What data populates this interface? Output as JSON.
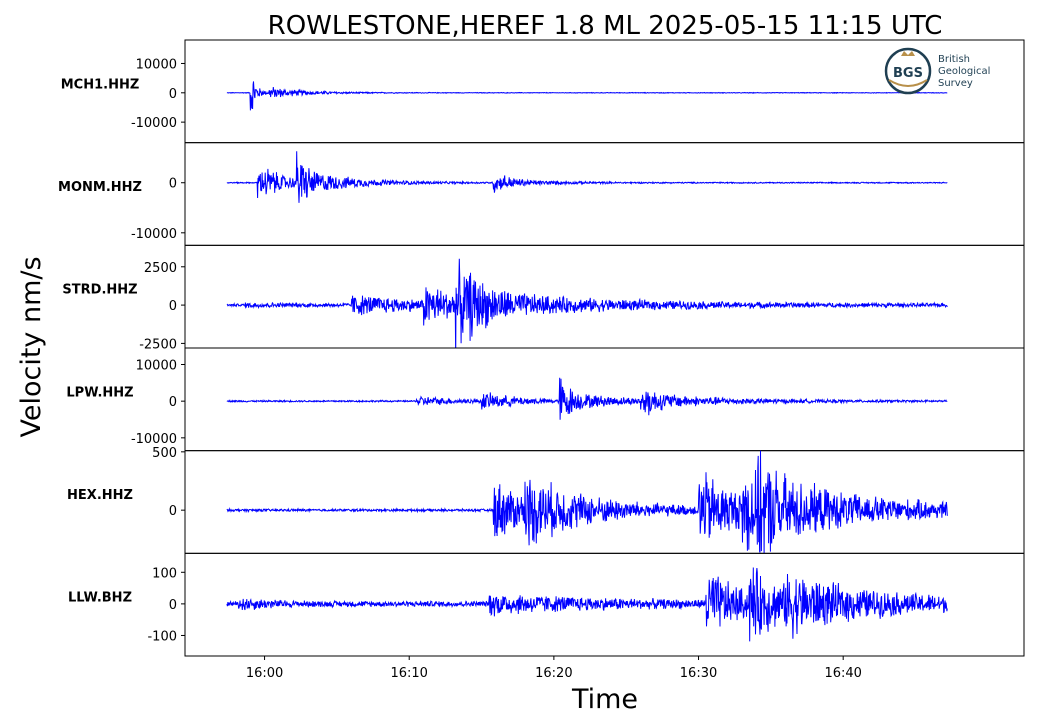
{
  "chart_data": {
    "type": "line",
    "title": "ROWLESTONE,HEREF 1.8 ML   2025-05-15 11:15 UTC",
    "ylabel": "Velocity nm/s",
    "xlabel": "Time",
    "x_unit": "minutes",
    "x_ticks": [
      {
        "value": 960,
        "label": "16:00"
      },
      {
        "value": 970,
        "label": "16:10"
      },
      {
        "value": 980,
        "label": "16:20"
      },
      {
        "value": 990,
        "label": "16:30"
      },
      {
        "value": 1000,
        "label": "16:40"
      }
    ],
    "xlim": [
      "15:54.5",
      "16:52.5"
    ],
    "trace_start": "15:57.4",
    "trace_end": "16:47.2",
    "line_color": "#0000ff",
    "grid": false,
    "logo": {
      "org": "BGS",
      "lines": [
        "British",
        "Geological",
        "Survey"
      ]
    },
    "series": [
      {
        "name": "MCH1.HHZ",
        "ylim": [
          -17000,
          18000
        ],
        "y_ticks": [
          {
            "value": 10000,
            "label": "10000"
          },
          {
            "value": 0,
            "label": "0"
          },
          {
            "value": -10000,
            "label": "-10000"
          }
        ],
        "noise": 120,
        "bursts": [
          {
            "t": 959.0,
            "amp": 13000,
            "decay": 0.15
          },
          {
            "t": 959.1,
            "amp": 5000,
            "decay": 0.5
          },
          {
            "t": 960.3,
            "amp": 2200,
            "decay": 2.5
          }
        ]
      },
      {
        "name": "MONM.HHZ",
        "ylim": [
          -12500,
          8000
        ],
        "y_ticks": [
          {
            "value": 0,
            "label": "0"
          },
          {
            "value": -10000,
            "label": "-10000"
          }
        ],
        "noise": 130,
        "bursts": [
          {
            "t": 959.5,
            "amp": 5500,
            "decay": 0.4
          },
          {
            "t": 960.0,
            "amp": 3000,
            "decay": 2.0
          },
          {
            "t": 962.2,
            "amp": 7500,
            "decay": 0.35
          },
          {
            "t": 962.5,
            "amp": 2500,
            "decay": 3.5
          },
          {
            "t": 975.8,
            "amp": 3200,
            "decay": 0.6
          },
          {
            "t": 976.5,
            "amp": 900,
            "decay": 3.0
          }
        ]
      },
      {
        "name": "STRD.HHZ",
        "ylim": [
          -2800,
          3900
        ],
        "y_ticks": [
          {
            "value": 2500,
            "label": "2500"
          },
          {
            "value": 0,
            "label": "0"
          },
          {
            "value": -2500,
            "label": "-2500"
          }
        ],
        "noise": 90,
        "bursts": [
          {
            "t": 958.5,
            "amp": 120,
            "decay": 8
          },
          {
            "t": 966.0,
            "amp": 700,
            "decay": 6
          },
          {
            "t": 971.0,
            "amp": 1300,
            "decay": 3
          },
          {
            "t": 973.2,
            "amp": 2700,
            "decay": 1.2
          },
          {
            "t": 974.0,
            "amp": 700,
            "decay": 12
          }
        ]
      },
      {
        "name": "LPW.HHZ",
        "ylim": [
          -13500,
          14500
        ],
        "y_ticks": [
          {
            "value": 10000,
            "label": "10000"
          },
          {
            "value": 0,
            "label": "0"
          },
          {
            "value": -10000,
            "label": "-10000"
          }
        ],
        "noise": 250,
        "bursts": [
          {
            "t": 970.5,
            "amp": 1500,
            "decay": 3
          },
          {
            "t": 975.0,
            "amp": 2300,
            "decay": 3
          },
          {
            "t": 980.4,
            "amp": 9500,
            "decay": 0.4
          },
          {
            "t": 980.8,
            "amp": 2500,
            "decay": 4
          },
          {
            "t": 986.0,
            "amp": 5000,
            "decay": 0.6
          },
          {
            "t": 986.5,
            "amp": 1800,
            "decay": 6
          }
        ]
      },
      {
        "name": "HEX.HHZ",
        "ylim": [
          -370,
          510
        ],
        "y_ticks": [
          {
            "value": 500,
            "label": "500"
          },
          {
            "value": 0,
            "label": "0"
          }
        ],
        "noise": 12,
        "bursts": [
          {
            "t": 975.8,
            "amp": 300,
            "decay": 3
          },
          {
            "t": 978.0,
            "amp": 220,
            "decay": 6
          },
          {
            "t": 990.0,
            "amp": 380,
            "decay": 3
          },
          {
            "t": 993.0,
            "amp": 350,
            "decay": 2.5
          },
          {
            "t": 994.0,
            "amp": 200,
            "decay": 12
          }
        ]
      },
      {
        "name": "LLW.BHZ",
        "ylim": [
          -165,
          160
        ],
        "y_ticks": [
          {
            "value": 100,
            "label": "100"
          },
          {
            "value": 0,
            "label": "0"
          },
          {
            "value": -100,
            "label": "-100"
          }
        ],
        "noise": 10,
        "bursts": [
          {
            "t": 958.2,
            "amp": 20,
            "decay": 2
          },
          {
            "t": 975.5,
            "amp": 35,
            "decay": 8
          },
          {
            "t": 990.5,
            "amp": 120,
            "decay": 2.5
          },
          {
            "t": 993.5,
            "amp": 100,
            "decay": 3
          },
          {
            "t": 996.0,
            "amp": 60,
            "decay": 10
          }
        ]
      }
    ]
  }
}
